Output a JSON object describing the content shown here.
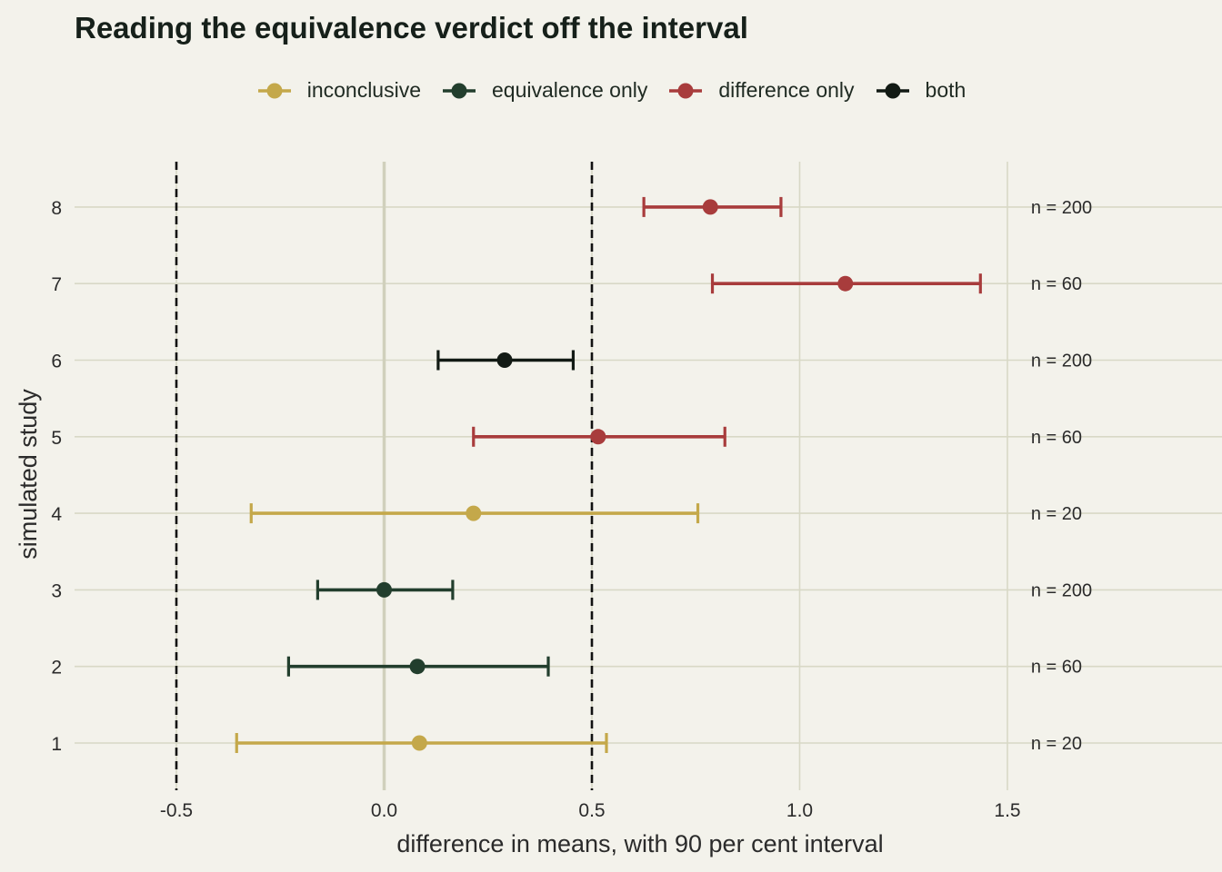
{
  "chart_data": {
    "type": "scatter",
    "title": "Reading the equivalence verdict off the interval",
    "xlabel": "difference in means, with 90 per cent interval",
    "ylabel": "simulated study",
    "xlim": [
      -0.75,
      2.0
    ],
    "ylim": [
      0.4,
      8.6
    ],
    "x_ticks": [
      -0.5,
      0.0,
      0.5,
      1.0,
      1.5
    ],
    "x_tick_labels": [
      "-0.5",
      "0.0",
      "0.5",
      "1.0",
      "1.5"
    ],
    "y_ticks": [
      1,
      2,
      3,
      4,
      5,
      6,
      7,
      8
    ],
    "y_tick_labels": [
      "1",
      "2",
      "3",
      "4",
      "5",
      "6",
      "7",
      "8"
    ],
    "equivalence_bounds": [
      -0.5,
      0.5
    ],
    "zero_line": 0.0,
    "legend": {
      "placement": "top-center",
      "entries": [
        {
          "key": "inconclusive",
          "label": "inconclusive",
          "color": "#c4a84a"
        },
        {
          "key": "equivalence",
          "label": "equivalence only",
          "color": "#223e2d"
        },
        {
          "key": "difference",
          "label": "difference only",
          "color": "#a83c3c"
        },
        {
          "key": "both",
          "label": "both",
          "color": "#121a14"
        }
      ]
    },
    "studies": [
      {
        "study": 1,
        "estimate": 0.085,
        "lower": -0.355,
        "upper": 0.535,
        "verdict": "inconclusive",
        "n_label": "n = 20"
      },
      {
        "study": 2,
        "estimate": 0.08,
        "lower": -0.23,
        "upper": 0.395,
        "verdict": "equivalence",
        "n_label": "n = 60"
      },
      {
        "study": 3,
        "estimate": 0.0,
        "lower": -0.16,
        "upper": 0.165,
        "verdict": "equivalence",
        "n_label": "n = 200"
      },
      {
        "study": 4,
        "estimate": 0.215,
        "lower": -0.32,
        "upper": 0.755,
        "verdict": "inconclusive",
        "n_label": "n = 20"
      },
      {
        "study": 5,
        "estimate": 0.515,
        "lower": 0.215,
        "upper": 0.82,
        "verdict": "difference",
        "n_label": "n = 60"
      },
      {
        "study": 6,
        "estimate": 0.29,
        "lower": 0.13,
        "upper": 0.455,
        "verdict": "both",
        "n_label": "n = 200"
      },
      {
        "study": 7,
        "estimate": 1.11,
        "lower": 0.79,
        "upper": 1.435,
        "verdict": "difference",
        "n_label": "n = 60"
      },
      {
        "study": 8,
        "estimate": 0.785,
        "lower": 0.625,
        "upper": 0.955,
        "verdict": "difference",
        "n_label": "n = 200"
      }
    ],
    "n_label_x": 1.55,
    "grid": true,
    "colors": {
      "background": "#f3f2eb",
      "grid": "#d8d8c6",
      "zero_line": "#d0d0bc",
      "bound_line": "#111111"
    }
  }
}
